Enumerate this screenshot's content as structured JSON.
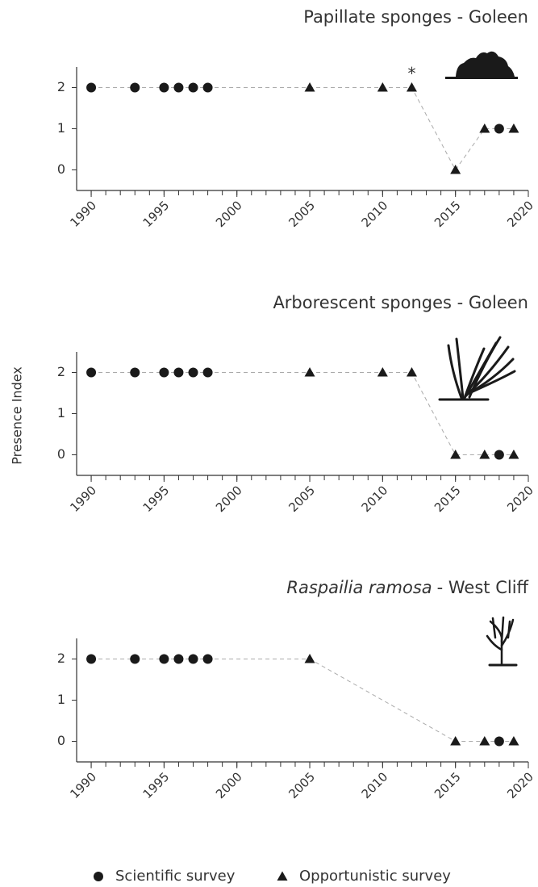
{
  "chart_data": [
    {
      "type": "scatter",
      "title": "Papillate sponges - Goleen",
      "x": [
        1990,
        1993,
        1995,
        1996,
        1997,
        1998,
        2005,
        2010,
        2012,
        2015,
        2017,
        2018,
        2019
      ],
      "values": [
        2,
        2,
        2,
        2,
        2,
        2,
        2,
        2,
        2,
        0,
        1,
        1,
        1
      ],
      "markers": [
        "circle",
        "circle",
        "circle",
        "circle",
        "circle",
        "circle",
        "triangle",
        "triangle",
        "triangle",
        "triangle",
        "triangle",
        "circle",
        "triangle"
      ],
      "annotations": [
        {
          "text": "*",
          "x": 2012,
          "y": 2
        }
      ],
      "xlim": [
        1989,
        2020
      ],
      "xticks": [
        1990,
        1995,
        2000,
        2005,
        2010,
        2015,
        2020
      ],
      "xminor_ticks": [
        1990,
        1991,
        1992,
        1993,
        1994,
        1995,
        1996,
        1997,
        1998,
        1999,
        2000,
        2001,
        2002,
        2003,
        2004,
        2005,
        2006,
        2007,
        2008,
        2009,
        2010,
        2011,
        2012,
        2013,
        2014,
        2015,
        2016,
        2017,
        2018,
        2019,
        2020
      ],
      "ylim": [
        -0.5,
        2.5
      ],
      "yticks": [
        0,
        1,
        2
      ],
      "color": "#1a1a1a"
    },
    {
      "type": "scatter",
      "title": "Arborescent sponges - Goleen",
      "x": [
        1990,
        1993,
        1995,
        1996,
        1997,
        1998,
        2005,
        2010,
        2012,
        2015,
        2017,
        2018,
        2019
      ],
      "values": [
        2,
        2,
        2,
        2,
        2,
        2,
        2,
        2,
        2,
        0,
        0,
        0,
        0
      ],
      "markers": [
        "circle",
        "circle",
        "circle",
        "circle",
        "circle",
        "circle",
        "triangle",
        "triangle",
        "triangle",
        "triangle",
        "triangle",
        "circle",
        "triangle"
      ],
      "xlim": [
        1989,
        2020
      ],
      "xticks": [
        1990,
        1995,
        2000,
        2005,
        2010,
        2015,
        2020
      ],
      "xminor_ticks": [
        1990,
        1991,
        1992,
        1993,
        1994,
        1995,
        1996,
        1997,
        1998,
        1999,
        2000,
        2001,
        2002,
        2003,
        2004,
        2005,
        2006,
        2007,
        2008,
        2009,
        2010,
        2011,
        2012,
        2013,
        2014,
        2015,
        2016,
        2017,
        2018,
        2019,
        2020
      ],
      "ylim": [
        -0.5,
        2.5
      ],
      "yticks": [
        0,
        1,
        2
      ],
      "color": "#1a1a1a"
    },
    {
      "type": "scatter",
      "title_species": "Raspailia ramosa",
      "title": "- West Cliff",
      "x": [
        1990,
        1993,
        1995,
        1996,
        1997,
        1998,
        2005,
        2015,
        2017,
        2018,
        2019
      ],
      "values": [
        2,
        2,
        2,
        2,
        2,
        2,
        2,
        0,
        0,
        0,
        0
      ],
      "markers": [
        "circle",
        "circle",
        "circle",
        "circle",
        "circle",
        "circle",
        "triangle",
        "triangle",
        "triangle",
        "circle",
        "triangle"
      ],
      "xlim": [
        1989,
        2020
      ],
      "xticks": [
        1990,
        1995,
        2000,
        2005,
        2010,
        2015,
        2020
      ],
      "xminor_ticks": [
        1990,
        1991,
        1992,
        1993,
        1994,
        1995,
        1996,
        1997,
        1998,
        1999,
        2000,
        2001,
        2002,
        2003,
        2004,
        2005,
        2006,
        2007,
        2008,
        2009,
        2010,
        2011,
        2012,
        2013,
        2014,
        2015,
        2016,
        2017,
        2018,
        2019,
        2020
      ],
      "ylim": [
        -0.5,
        2.5
      ],
      "yticks": [
        0,
        1,
        2
      ],
      "color": "#1a1a1a"
    }
  ],
  "ylabel": "Presence Index",
  "legend": [
    {
      "name": "Scientific survey",
      "marker": "circle"
    },
    {
      "name": "Opportunistic survey",
      "marker": "triangle"
    }
  ]
}
